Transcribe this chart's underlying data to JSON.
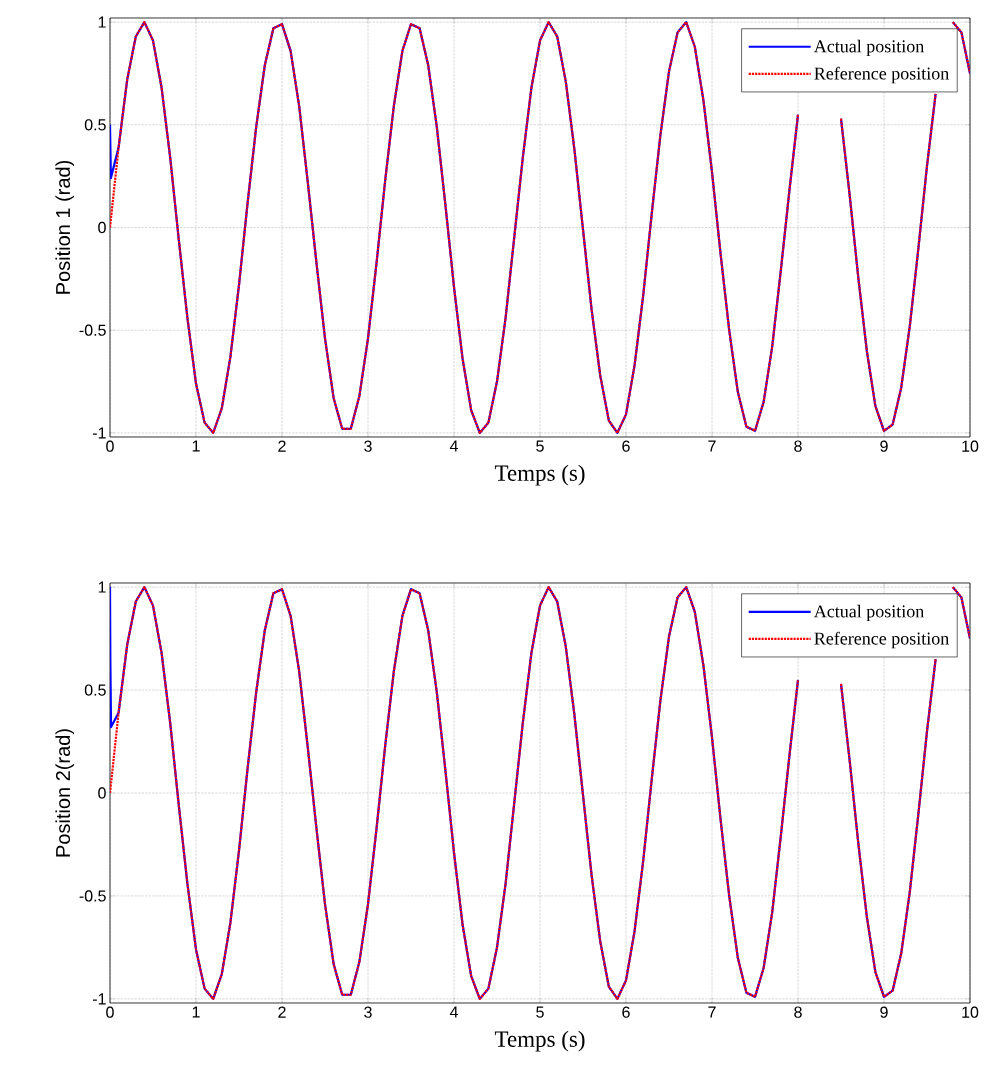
{
  "chart_data": [
    {
      "type": "line",
      "xlabel": "Temps (s)",
      "ylabel": "Position 1 (rad)",
      "xlim": [
        0,
        10
      ],
      "ylim": [
        -1.02,
        1.02
      ],
      "xticks": [
        0,
        1,
        2,
        3,
        4,
        5,
        6,
        7,
        8,
        9,
        10
      ],
      "yticks": [
        -1,
        -0.5,
        0,
        0.5,
        1
      ],
      "grid": true,
      "legend": "top right",
      "x": [
        0,
        0.1,
        0.2,
        0.3,
        0.4,
        0.5,
        0.6,
        0.7,
        0.8,
        0.9,
        1,
        1.1,
        1.2,
        1.3,
        1.4,
        1.5,
        1.6,
        1.7,
        1.8,
        1.9,
        2,
        2.1,
        2.2,
        2.3,
        2.4,
        2.5,
        2.6,
        2.7,
        2.8,
        2.9,
        3,
        3.1,
        3.2,
        3.3,
        3.4,
        3.5,
        3.6,
        3.7,
        3.8,
        3.9,
        4,
        4.1,
        4.2,
        4.3,
        4.4,
        4.5,
        4.6,
        4.7,
        4.8,
        4.9,
        5,
        5.1,
        5.2,
        5.3,
        5.4,
        5.5,
        5.6,
        5.7,
        5.8,
        5.9,
        6,
        6.1,
        6.2,
        6.3,
        6.4,
        6.5,
        6.6,
        6.7,
        6.8,
        6.9,
        7,
        7.1,
        7.2,
        7.3,
        7.4,
        7.5,
        7.6,
        7.7,
        7.8,
        7.9,
        8,
        8.1,
        8.2,
        8.3,
        8.4,
        8.5,
        8.6,
        8.7,
        8.8,
        8.9,
        9,
        9.1,
        9.2,
        9.3,
        9.4,
        9.5,
        9.6,
        9.7,
        9.8,
        9.9,
        10
      ],
      "series": [
        {
          "name": "Actual position",
          "color": "#0000ff",
          "line_style": "solid",
          "x": [
            0,
            0.01,
            0.1,
            0.2,
            0.3,
            0.4,
            0.5,
            0.6,
            0.7,
            0.8,
            0.9,
            1,
            1.1,
            1.2,
            1.3,
            1.4,
            1.5,
            1.6,
            1.7,
            1.8,
            1.9,
            2,
            2.1,
            2.2,
            2.3,
            2.4,
            2.5,
            2.6,
            2.7,
            2.8,
            2.9,
            3,
            3.1,
            3.2,
            3.3,
            3.4,
            3.5,
            3.6,
            3.7,
            3.8,
            3.9,
            4,
            4.1,
            4.2,
            4.3,
            4.4,
            4.5,
            4.6,
            4.7,
            4.8,
            4.9,
            5,
            5.1,
            5.2,
            5.3,
            5.4,
            5.5,
            5.6,
            5.7,
            5.8,
            5.9,
            6,
            6.1,
            6.2,
            6.3,
            6.4,
            6.5,
            6.6,
            6.7,
            6.8,
            6.9,
            7,
            7.1,
            7.2,
            7.3,
            7.4,
            7.5,
            7.6,
            7.7,
            7.8,
            7.9,
            8,
            8.1,
            8.2,
            8.3,
            8.4,
            8.5,
            8.6,
            8.7,
            8.8,
            8.9,
            9,
            9.1,
            9.2,
            9.3,
            9.4,
            9.5,
            9.6,
            9.7,
            9.8,
            9.9,
            10
          ],
          "values": [
            0.5,
            0.24,
            0.39,
            0.72,
            0.93,
            1.0,
            0.91,
            0.68,
            0.34,
            -0.06,
            -0.44,
            -0.76,
            -0.95,
            -1.0,
            -0.88,
            -0.63,
            -0.28,
            0.12,
            0.49,
            0.79,
            0.97,
            0.99,
            0.86,
            0.59,
            0.22,
            -0.17,
            -0.54,
            -0.83,
            -0.98,
            -0.98,
            -0.82,
            -0.54,
            -0.17,
            0.23,
            0.59,
            0.86,
            0.99,
            0.97,
            0.79,
            0.49,
            0.11,
            -0.29,
            -0.64,
            -0.89,
            -1.0,
            -0.95,
            -0.75,
            -0.44,
            -0.05,
            0.34,
            0.68,
            0.91,
            1.0,
            0.93,
            0.71,
            0.38,
            -0.01,
            -0.4,
            -0.72,
            -0.94,
            -1.0,
            -0.91,
            -0.67,
            -0.33,
            0.07,
            0.45,
            0.76,
            0.95,
            1.0,
            0.88,
            0.62,
            0.27,
            -0.13,
            -0.5,
            -0.8,
            -0.97,
            -0.99,
            -0.85,
            -0.58,
            -0.21,
            0.18,
            0.55,
            null,
            null,
            null,
            null,
            0.53,
            0.16,
            -0.24,
            -0.6,
            -0.87,
            -0.99,
            -0.96,
            -0.78,
            -0.48,
            -0.1,
            0.3,
            0.65,
            null,
            1.0,
            0.95,
            0.75
          ]
        },
        {
          "name": "Reference position",
          "color": "#ff0000",
          "line_style": "dotted",
          "values": [
            0,
            0.39,
            0.72,
            0.93,
            1.0,
            0.91,
            0.68,
            0.34,
            -0.06,
            -0.44,
            -0.76,
            -0.95,
            -1.0,
            -0.88,
            -0.63,
            -0.28,
            0.12,
            0.49,
            0.79,
            0.97,
            0.99,
            0.86,
            0.59,
            0.22,
            -0.17,
            -0.54,
            -0.83,
            -0.98,
            -0.98,
            -0.82,
            -0.54,
            -0.17,
            0.23,
            0.59,
            0.86,
            0.99,
            0.97,
            0.79,
            0.49,
            0.11,
            -0.29,
            -0.64,
            -0.89,
            -1.0,
            -0.95,
            -0.75,
            -0.44,
            -0.05,
            0.34,
            0.68,
            0.91,
            1.0,
            0.93,
            0.71,
            0.38,
            -0.01,
            -0.4,
            -0.72,
            -0.94,
            -1.0,
            -0.91,
            -0.67,
            -0.33,
            0.07,
            0.45,
            0.76,
            0.95,
            1.0,
            0.88,
            0.62,
            0.27,
            -0.13,
            -0.5,
            -0.8,
            -0.97,
            -0.99,
            -0.85,
            -0.58,
            -0.21,
            0.18,
            0.55,
            null,
            null,
            null,
            null,
            0.53,
            0.16,
            -0.24,
            -0.6,
            -0.87,
            -0.99,
            -0.96,
            -0.78,
            -0.48,
            -0.1,
            0.3,
            0.65,
            null,
            1.0,
            0.95,
            0.75
          ]
        }
      ]
    },
    {
      "type": "line",
      "xlabel": "Temps (s)",
      "ylabel": "Position 2(rad)",
      "xlim": [
        0,
        10
      ],
      "ylim": [
        -1.02,
        1.02
      ],
      "xticks": [
        0,
        1,
        2,
        3,
        4,
        5,
        6,
        7,
        8,
        9,
        10
      ],
      "yticks": [
        -1,
        -0.5,
        0,
        0.5,
        1
      ],
      "grid": true,
      "legend": "top right",
      "x": [
        0,
        0.1,
        0.2,
        0.3,
        0.4,
        0.5,
        0.6,
        0.7,
        0.8,
        0.9,
        1,
        1.1,
        1.2,
        1.3,
        1.4,
        1.5,
        1.6,
        1.7,
        1.8,
        1.9,
        2,
        2.1,
        2.2,
        2.3,
        2.4,
        2.5,
        2.6,
        2.7,
        2.8,
        2.9,
        3,
        3.1,
        3.2,
        3.3,
        3.4,
        3.5,
        3.6,
        3.7,
        3.8,
        3.9,
        4,
        4.1,
        4.2,
        4.3,
        4.4,
        4.5,
        4.6,
        4.7,
        4.8,
        4.9,
        5,
        5.1,
        5.2,
        5.3,
        5.4,
        5.5,
        5.6,
        5.7,
        5.8,
        5.9,
        6,
        6.1,
        6.2,
        6.3,
        6.4,
        6.5,
        6.6,
        6.7,
        6.8,
        6.9,
        7,
        7.1,
        7.2,
        7.3,
        7.4,
        7.5,
        7.6,
        7.7,
        7.8,
        7.9,
        8,
        8.1,
        8.2,
        8.3,
        8.4,
        8.5,
        8.6,
        8.7,
        8.8,
        8.9,
        9,
        9.1,
        9.2,
        9.3,
        9.4,
        9.5,
        9.6,
        9.7,
        9.8,
        9.9,
        10
      ],
      "series": [
        {
          "name": "Actual position",
          "color": "#0000ff",
          "line_style": "solid",
          "x": [
            0,
            0.004,
            0.012,
            0.1,
            0.2,
            0.3,
            0.4,
            0.5,
            0.6,
            0.7,
            0.8,
            0.9,
            1,
            1.1,
            1.2,
            1.3,
            1.4,
            1.5,
            1.6,
            1.7,
            1.8,
            1.9,
            2,
            2.1,
            2.2,
            2.3,
            2.4,
            2.5,
            2.6,
            2.7,
            2.8,
            2.9,
            3,
            3.1,
            3.2,
            3.3,
            3.4,
            3.5,
            3.6,
            3.7,
            3.8,
            3.9,
            4,
            4.1,
            4.2,
            4.3,
            4.4,
            4.5,
            4.6,
            4.7,
            4.8,
            4.9,
            5,
            5.1,
            5.2,
            5.3,
            5.4,
            5.5,
            5.6,
            5.7,
            5.8,
            5.9,
            6,
            6.1,
            6.2,
            6.3,
            6.4,
            6.5,
            6.6,
            6.7,
            6.8,
            6.9,
            7,
            7.1,
            7.2,
            7.3,
            7.4,
            7.5,
            7.6,
            7.7,
            7.8,
            7.9,
            8,
            8.1,
            8.2,
            8.3,
            8.4,
            8.5,
            8.6,
            8.7,
            8.8,
            8.9,
            9,
            9.1,
            9.2,
            9.3,
            9.4,
            9.5,
            9.6,
            9.7,
            9.8,
            9.9,
            10
          ],
          "values": [
            1.0,
            0.65,
            0.32,
            0.39,
            0.72,
            0.93,
            1.0,
            0.91,
            0.68,
            0.34,
            -0.06,
            -0.44,
            -0.76,
            -0.95,
            -1.0,
            -0.88,
            -0.63,
            -0.28,
            0.12,
            0.49,
            0.79,
            0.97,
            0.99,
            0.86,
            0.59,
            0.22,
            -0.17,
            -0.54,
            -0.83,
            -0.98,
            -0.98,
            -0.82,
            -0.54,
            -0.17,
            0.23,
            0.59,
            0.86,
            0.99,
            0.97,
            0.79,
            0.49,
            0.11,
            -0.29,
            -0.64,
            -0.89,
            -1.0,
            -0.95,
            -0.75,
            -0.44,
            -0.05,
            0.34,
            0.68,
            0.91,
            1.0,
            0.93,
            0.71,
            0.38,
            -0.01,
            -0.4,
            -0.72,
            -0.94,
            -1.0,
            -0.91,
            -0.67,
            -0.33,
            0.07,
            0.45,
            0.76,
            0.95,
            1.0,
            0.88,
            0.62,
            0.27,
            -0.13,
            -0.5,
            -0.8,
            -0.97,
            -0.99,
            -0.85,
            -0.58,
            -0.21,
            0.18,
            0.55,
            null,
            null,
            null,
            null,
            0.53,
            0.16,
            -0.24,
            -0.6,
            -0.87,
            -0.99,
            -0.96,
            -0.78,
            -0.48,
            -0.1,
            0.3,
            0.65,
            null,
            1.0,
            0.95,
            0.75
          ]
        },
        {
          "name": "Reference position",
          "color": "#ff0000",
          "line_style": "dotted",
          "values": [
            0,
            0.39,
            0.72,
            0.93,
            1.0,
            0.91,
            0.68,
            0.34,
            -0.06,
            -0.44,
            -0.76,
            -0.95,
            -1.0,
            -0.88,
            -0.63,
            -0.28,
            0.12,
            0.49,
            0.79,
            0.97,
            0.99,
            0.86,
            0.59,
            0.22,
            -0.17,
            -0.54,
            -0.83,
            -0.98,
            -0.98,
            -0.82,
            -0.54,
            -0.17,
            0.23,
            0.59,
            0.86,
            0.99,
            0.97,
            0.79,
            0.49,
            0.11,
            -0.29,
            -0.64,
            -0.89,
            -1.0,
            -0.95,
            -0.75,
            -0.44,
            -0.05,
            0.34,
            0.68,
            0.91,
            1.0,
            0.93,
            0.71,
            0.38,
            -0.01,
            -0.4,
            -0.72,
            -0.94,
            -1.0,
            -0.91,
            -0.67,
            -0.33,
            0.07,
            0.45,
            0.76,
            0.95,
            1.0,
            0.88,
            0.62,
            0.27,
            -0.13,
            -0.5,
            -0.8,
            -0.97,
            -0.99,
            -0.85,
            -0.58,
            -0.21,
            0.18,
            0.55,
            null,
            null,
            null,
            null,
            0.53,
            0.16,
            -0.24,
            -0.6,
            -0.87,
            -0.99,
            -0.96,
            -0.78,
            -0.48,
            -0.1,
            0.3,
            0.65,
            null,
            1.0,
            0.95,
            0.75
          ]
        }
      ]
    }
  ]
}
